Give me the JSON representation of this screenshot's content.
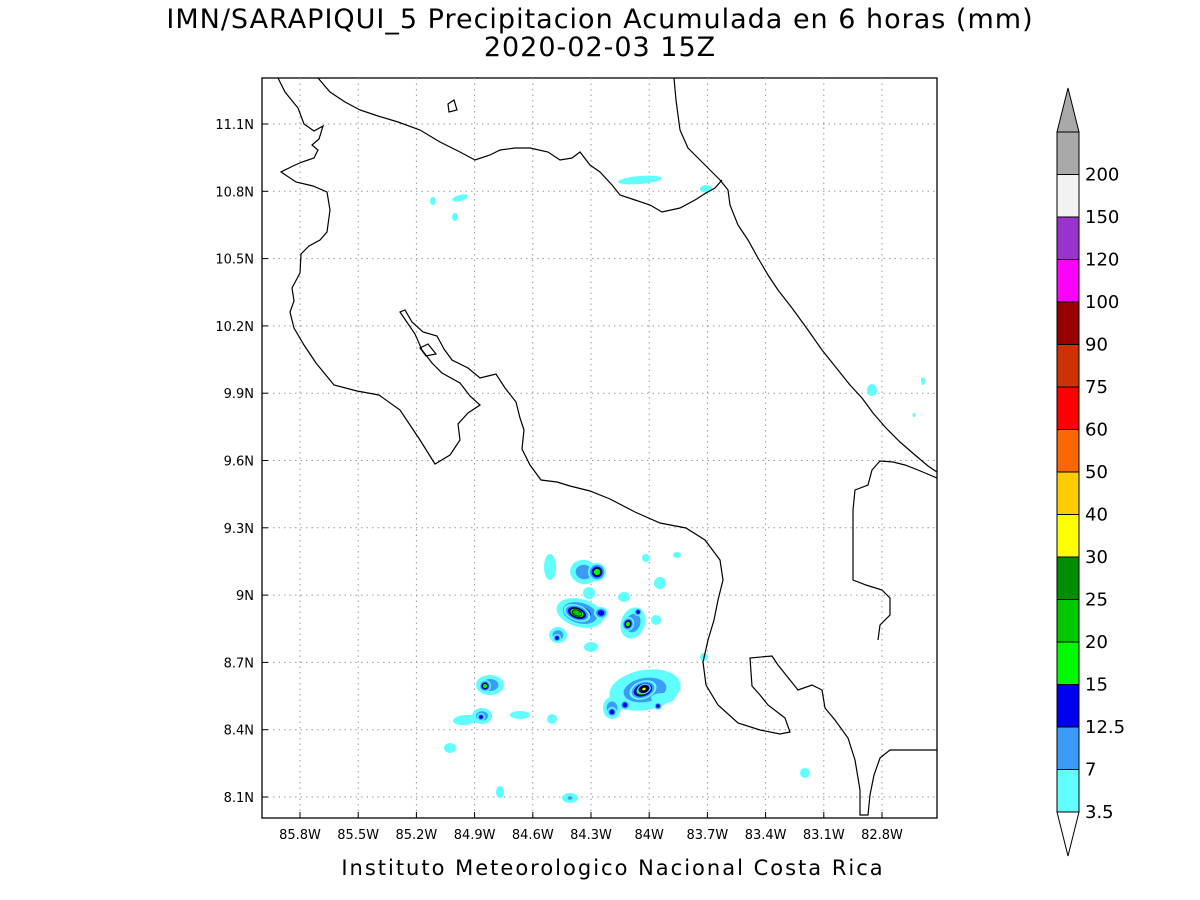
{
  "title": {
    "line1": "IMN/SARAPIQUI_5 Precipitacion Acumulada en 6 horas (mm)",
    "line2": "2020-02-03 15Z"
  },
  "footer": "Instituto Meteorologico Nacional Costa Rica",
  "axes": {
    "lat_ticks": [
      "11.1N",
      "10.8N",
      "10.5N",
      "10.2N",
      "9.9N",
      "9.6N",
      "9.3N",
      "9N",
      "8.7N",
      "8.4N",
      "8.1N"
    ],
    "lon_ticks": [
      "85.8W",
      "85.5W",
      "85.2W",
      "84.9W",
      "84.6W",
      "84.3W",
      "84W",
      "83.7W",
      "83.4W",
      "83.1W",
      "82.8W"
    ],
    "grid": "dotted"
  },
  "colorbar": {
    "labels": [
      "3.5",
      "7",
      "12.5",
      "15",
      "20",
      "25",
      "30",
      "40",
      "50",
      "60",
      "75",
      "90",
      "100",
      "120",
      "150",
      "200"
    ],
    "colors": [
      "#61fefe",
      "#3a9cf8",
      "#0000f0",
      "#00fb00",
      "#00c800",
      "#008e00",
      "#fefe00",
      "#fecc00",
      "#fe6600",
      "#fe0000",
      "#cc3300",
      "#990000",
      "#fe00fe",
      "#9933cc",
      "#f2f2f2",
      "#a9a9a9"
    ]
  },
  "legend_placement": "right"
}
